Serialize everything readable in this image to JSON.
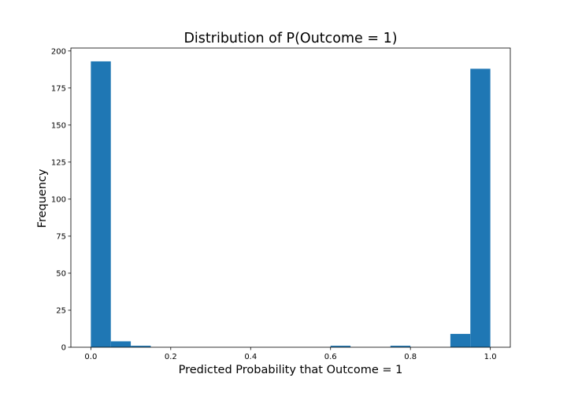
{
  "chart_data": {
    "type": "bar",
    "title": "Distribution of P(Outcome = 1)",
    "xlabel": "Predicted Probability that Outcome = 1",
    "ylabel": "Frequency",
    "xlim": [
      -0.05,
      1.05
    ],
    "ylim": [
      0,
      202
    ],
    "xticks": [
      "0.0",
      "0.2",
      "0.4",
      "0.6",
      "0.8",
      "1.0"
    ],
    "yticks": [
      "0",
      "25",
      "50",
      "75",
      "100",
      "125",
      "150",
      "175",
      "200"
    ],
    "grid": false,
    "bar_color": "#1f77b4",
    "bins": [
      {
        "x0": 0.0,
        "x1": 0.05,
        "count": 193
      },
      {
        "x0": 0.05,
        "x1": 0.1,
        "count": 4
      },
      {
        "x0": 0.1,
        "x1": 0.15,
        "count": 1
      },
      {
        "x0": 0.15,
        "x1": 0.2,
        "count": 0
      },
      {
        "x0": 0.2,
        "x1": 0.25,
        "count": 0
      },
      {
        "x0": 0.25,
        "x1": 0.3,
        "count": 0
      },
      {
        "x0": 0.3,
        "x1": 0.35,
        "count": 0
      },
      {
        "x0": 0.35,
        "x1": 0.4,
        "count": 0
      },
      {
        "x0": 0.4,
        "x1": 0.45,
        "count": 0
      },
      {
        "x0": 0.45,
        "x1": 0.5,
        "count": 0
      },
      {
        "x0": 0.5,
        "x1": 0.55,
        "count": 0
      },
      {
        "x0": 0.55,
        "x1": 0.6,
        "count": 0
      },
      {
        "x0": 0.6,
        "x1": 0.65,
        "count": 1
      },
      {
        "x0": 0.65,
        "x1": 0.7,
        "count": 0
      },
      {
        "x0": 0.7,
        "x1": 0.75,
        "count": 0
      },
      {
        "x0": 0.75,
        "x1": 0.8,
        "count": 1
      },
      {
        "x0": 0.8,
        "x1": 0.85,
        "count": 0
      },
      {
        "x0": 0.85,
        "x1": 0.9,
        "count": 0
      },
      {
        "x0": 0.9,
        "x1": 0.95,
        "count": 9
      },
      {
        "x0": 0.95,
        "x1": 1.0,
        "count": 188
      }
    ]
  }
}
